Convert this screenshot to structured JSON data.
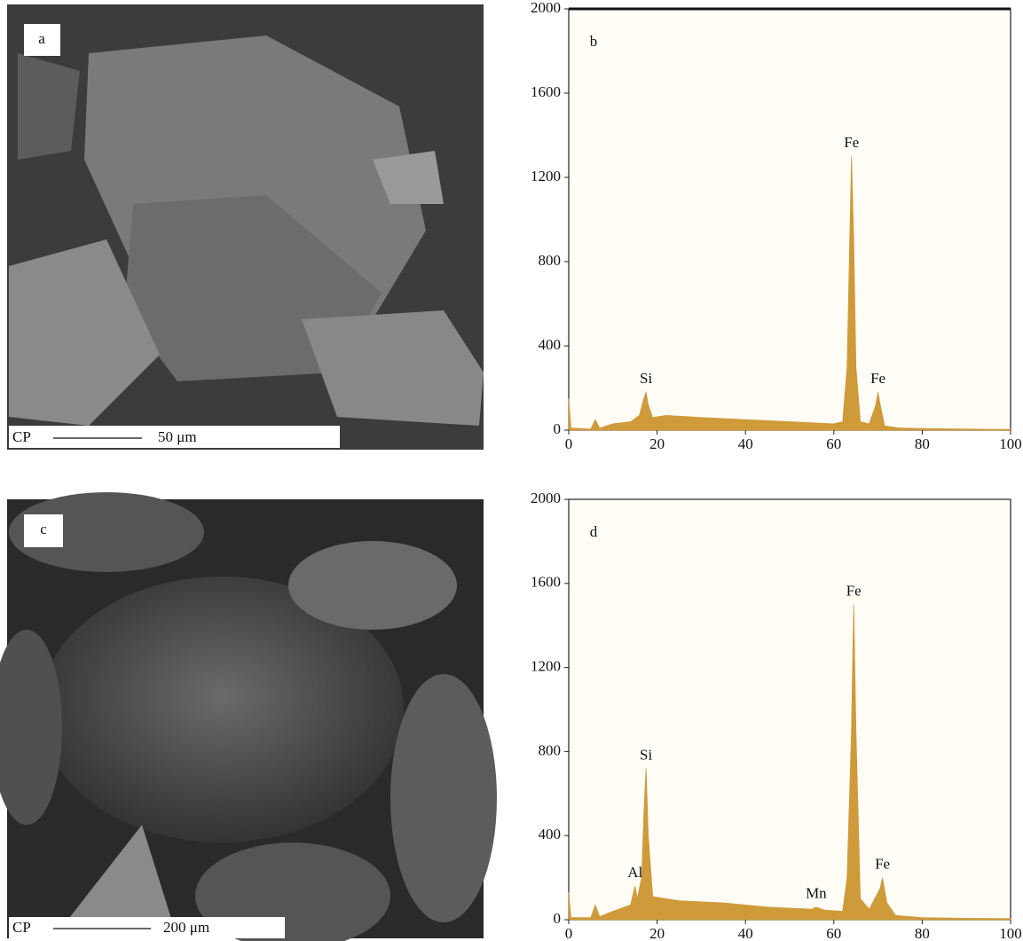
{
  "images": [
    {
      "label": "a",
      "scale_prefix": "CP",
      "scale": "50 μm"
    },
    {
      "label": "c",
      "scale_prefix": "CP",
      "scale": "200 μm"
    }
  ],
  "chart_data": [
    {
      "type": "area",
      "panel_label": "b",
      "color": "#cf9a3a",
      "x": [
        0,
        0.5,
        5,
        6,
        7,
        10,
        14,
        16,
        17,
        17.5,
        18,
        19,
        22,
        30,
        40,
        50,
        60,
        62,
        63,
        63.5,
        64,
        64.5,
        65,
        66,
        68,
        69.5,
        70,
        70.5,
        71.5,
        75,
        80,
        90,
        100
      ],
      "values": [
        150,
        10,
        5,
        50,
        10,
        30,
        40,
        70,
        150,
        180,
        120,
        60,
        70,
        60,
        50,
        40,
        30,
        40,
        300,
        800,
        1300,
        900,
        300,
        40,
        30,
        120,
        180,
        120,
        20,
        10,
        8,
        5,
        3
      ],
      "annotations": [
        {
          "text": "Si",
          "x": 17.5,
          "y": 180
        },
        {
          "text": "Fe",
          "x": 64,
          "y": 1300
        },
        {
          "text": "Fe",
          "x": 70,
          "y": 180
        }
      ],
      "xlim": [
        0,
        100
      ],
      "ylim": [
        0,
        2000
      ],
      "xticks": [
        0,
        20,
        40,
        60,
        80,
        100
      ],
      "yticks": [
        0,
        400,
        800,
        1200,
        1600,
        2000
      ]
    },
    {
      "type": "area",
      "panel_label": "d",
      "color": "#cf9a3a",
      "x": [
        0,
        0.5,
        5,
        6,
        7,
        10,
        14,
        15,
        15.5,
        16.5,
        17,
        17.5,
        18,
        19,
        25,
        35,
        45,
        55,
        56,
        58,
        62,
        63,
        64,
        64.5,
        65,
        66,
        68,
        70.5,
        71,
        72,
        74,
        80,
        90,
        100
      ],
      "values": [
        130,
        10,
        10,
        70,
        15,
        40,
        70,
        160,
        100,
        200,
        500,
        720,
        400,
        110,
        90,
        80,
        60,
        50,
        60,
        45,
        40,
        200,
        900,
        1500,
        900,
        100,
        50,
        150,
        200,
        80,
        20,
        10,
        7,
        5
      ],
      "annotations": [
        {
          "text": "Al",
          "x": 15,
          "y": 160
        },
        {
          "text": "Si",
          "x": 17.5,
          "y": 720
        },
        {
          "text": "Mn",
          "x": 56,
          "y": 60
        },
        {
          "text": "Fe",
          "x": 64.5,
          "y": 1500
        },
        {
          "text": "Fe",
          "x": 71,
          "y": 200
        }
      ],
      "xlim": [
        0,
        100
      ],
      "ylim": [
        0,
        2000
      ],
      "xticks": [
        0,
        20,
        40,
        60,
        80,
        100
      ],
      "yticks": [
        0,
        400,
        800,
        1200,
        1600,
        2000
      ]
    }
  ]
}
